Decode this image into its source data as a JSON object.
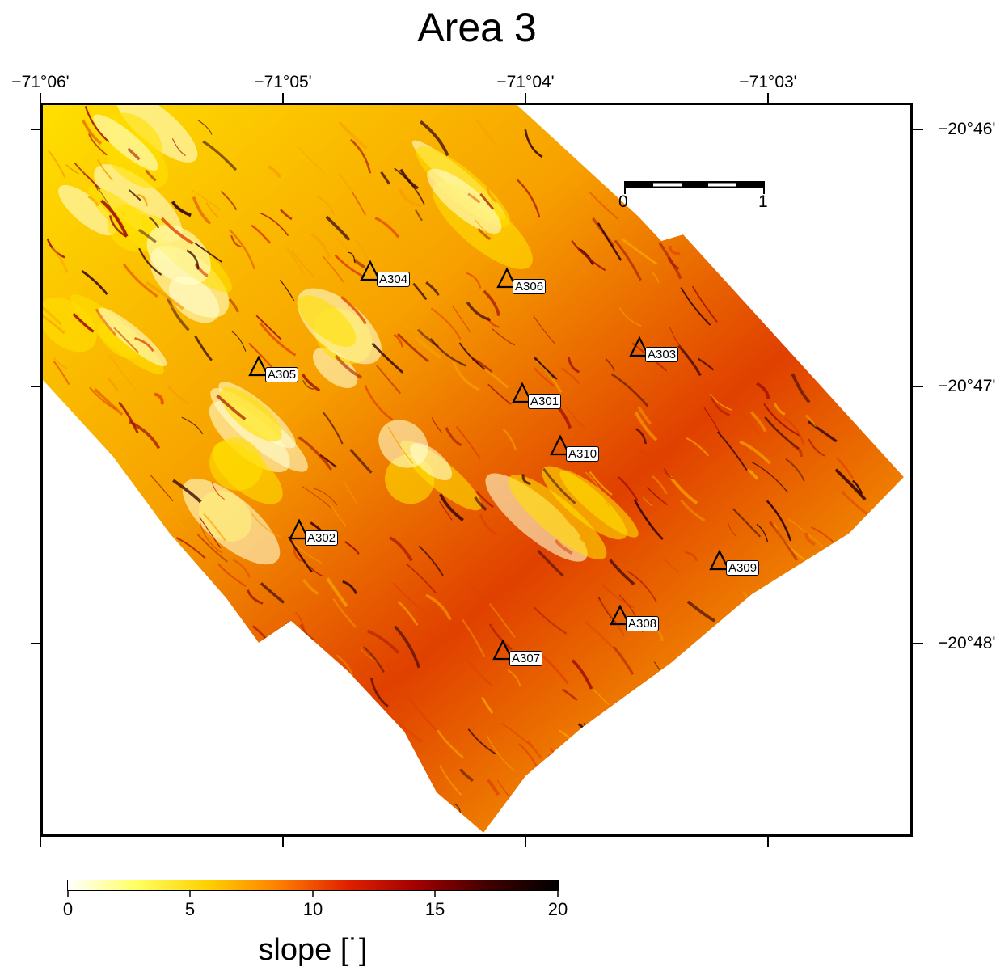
{
  "title": "Area 3",
  "map": {
    "lon_labels": [
      "−71°06'",
      "−71°05'",
      "−71°04'",
      "−71°03'"
    ],
    "lat_labels": [
      "−20°46'",
      "−20°47'",
      "−20°48'"
    ],
    "scale_bar": {
      "start_label": "0",
      "end_label": "1"
    },
    "stations": [
      "A304",
      "A306",
      "A303",
      "A305",
      "A301",
      "A310",
      "A302",
      "A309",
      "A308",
      "A307"
    ],
    "fill_colors": {
      "low": "#ffffd0",
      "mid_low": "#ffe000",
      "mid": "#f7a000",
      "mid_high": "#e04000",
      "high": "#a01000",
      "max": "#300000"
    }
  },
  "colorbar": {
    "labels": [
      "0",
      "5",
      "10",
      "15",
      "20"
    ],
    "range": [
      0,
      20
    ],
    "title": "slope [˙]",
    "colors": [
      "#ffffff",
      "#ffff60",
      "#ffd000",
      "#ff8000",
      "#e02000",
      "#a00000",
      "#400000",
      "#000000"
    ]
  }
}
